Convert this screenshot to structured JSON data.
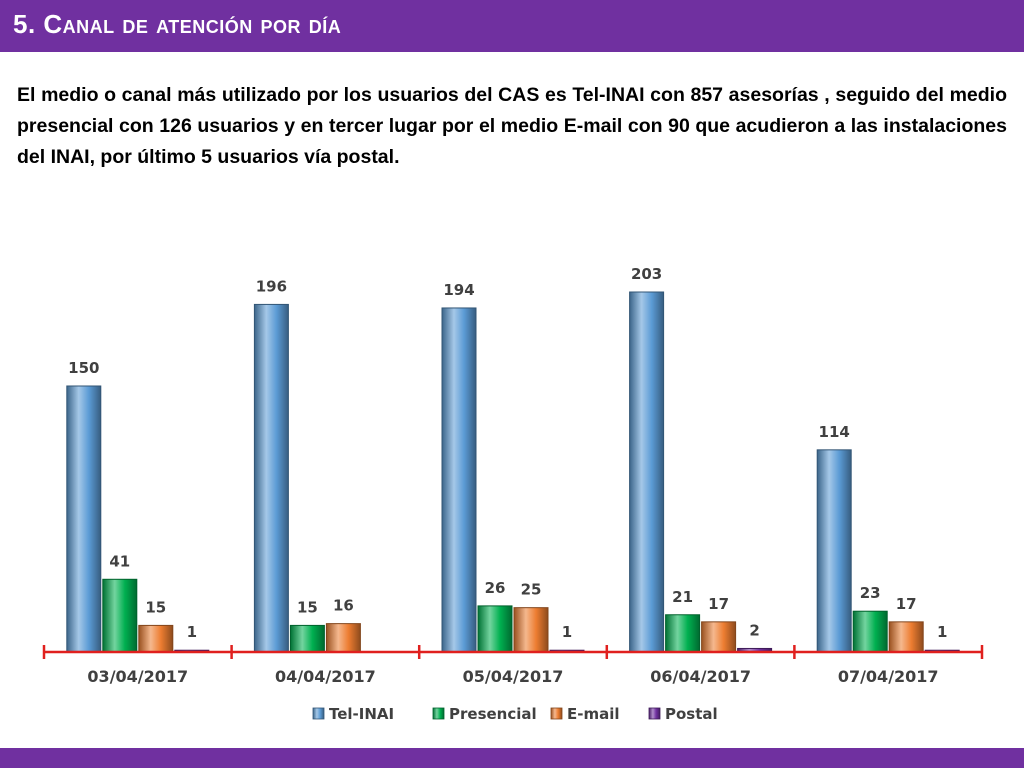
{
  "slide": {
    "title": "5. Canal de atención por día",
    "summary": "El medio o canal más utilizado por los usuarios del CAS es Tel-INAI con 857 asesorías , seguido del medio presencial con 126 usuarios y en tercer lugar por el medio E-mail con 90 que acudieron a las instalaciones del INAI, por último 5 usuarios vía postal."
  },
  "colors": {
    "title_bar": "#7030A0",
    "tel_inai": "#5B9BD5",
    "presencial": "#00B050",
    "email": "#ED7D31",
    "postal": "#7030A0",
    "axis": "#E0201E"
  },
  "chart_data": {
    "type": "bar",
    "title": "",
    "xlabel": "",
    "ylabel": "",
    "categories": [
      "03/04/2017",
      "04/04/2017",
      "05/04/2017",
      "06/04/2017",
      "07/04/2017"
    ],
    "series": [
      {
        "name": "Tel-INAI",
        "color": "#5B9BD5",
        "values": [
          150,
          196,
          194,
          203,
          114
        ]
      },
      {
        "name": "Presencial",
        "color": "#00B050",
        "values": [
          41,
          15,
          26,
          21,
          23
        ]
      },
      {
        "name": "E-mail",
        "color": "#ED7D31",
        "values": [
          15,
          16,
          25,
          17,
          17
        ]
      },
      {
        "name": "Postal",
        "color": "#7030A0",
        "values": [
          1,
          null,
          1,
          2,
          1
        ]
      }
    ],
    "ylim": [
      0,
      203
    ],
    "grid": false,
    "legend": "bottom",
    "data_labels": true
  }
}
